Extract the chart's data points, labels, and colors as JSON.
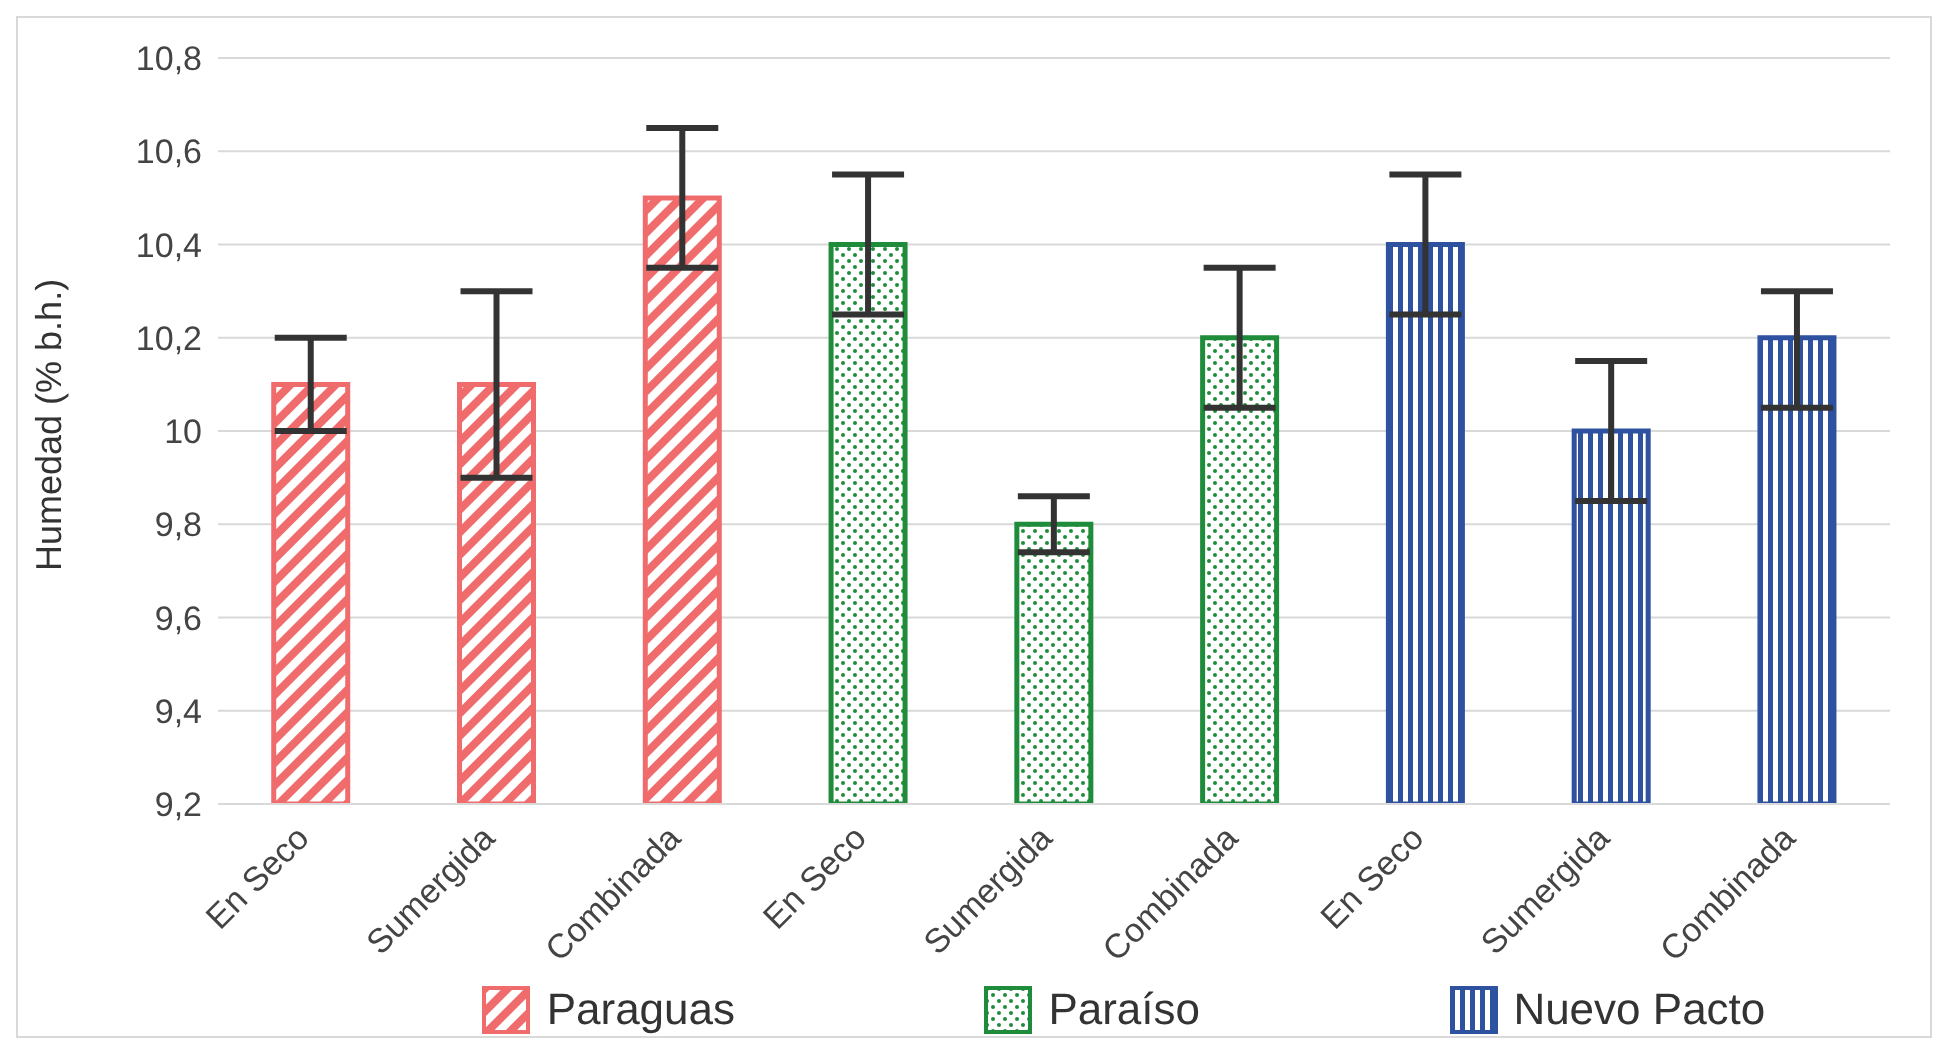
{
  "chart_data": {
    "type": "bar",
    "ylabel": "Humedad (% b.h.)",
    "categories": [
      "En Seco",
      "Sumergida",
      "Combinada",
      "En Seco",
      "Sumergida",
      "Combinada",
      "En Seco",
      "Sumergida",
      "Combinada"
    ],
    "series": [
      {
        "name": "Paraguas",
        "color": "#f06c6c",
        "values": [
          10.1,
          10.1,
          10.5,
          null,
          null,
          null,
          null,
          null,
          null
        ],
        "errors": [
          0.1,
          0.2,
          0.15,
          null,
          null,
          null,
          null,
          null,
          null
        ]
      },
      {
        "name": "Paraíso",
        "color": "#1e8c3a",
        "values": [
          null,
          null,
          null,
          10.4,
          9.8,
          10.2,
          null,
          null,
          null
        ],
        "errors": [
          null,
          null,
          null,
          0.15,
          0.06,
          0.15,
          null,
          null,
          null
        ]
      },
      {
        "name": "Nuevo Pacto",
        "color": "#2f52a0",
        "values": [
          null,
          null,
          null,
          null,
          null,
          null,
          10.4,
          10.0,
          10.2
        ],
        "errors": [
          null,
          null,
          null,
          null,
          null,
          null,
          0.15,
          0.15,
          [
            10.05,
            10.3
          ]
        ]
      }
    ],
    "ylim": [
      9.2,
      10.8
    ],
    "yticks": [
      {
        "value": 9.2,
        "label": "9,2"
      },
      {
        "value": 9.4,
        "label": "9,4"
      },
      {
        "value": 9.6,
        "label": "9,6"
      },
      {
        "value": 9.8,
        "label": "9,8"
      },
      10,
      {
        "value": 10.2,
        "label": "10,2"
      },
      {
        "value": 10.4,
        "label": "10,4"
      },
      {
        "value": 10.6,
        "label": "10,6"
      },
      {
        "value": 10.8,
        "label": "10,8"
      }
    ],
    "grid": "y",
    "legend": "bottom"
  }
}
